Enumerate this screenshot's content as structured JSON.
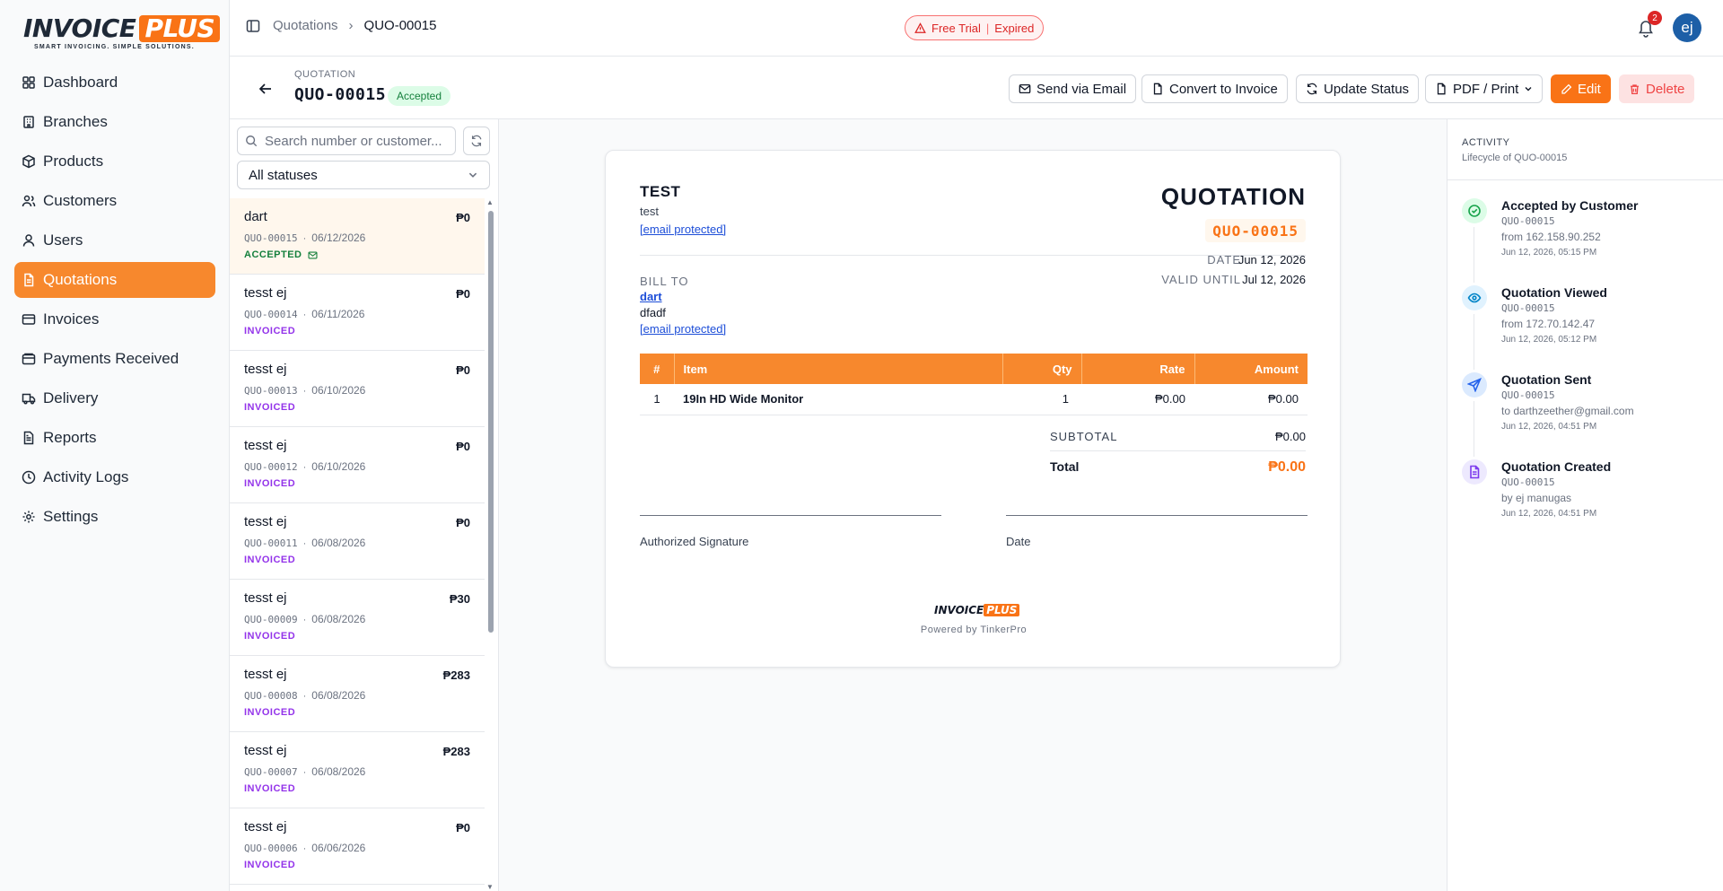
{
  "brand": {
    "name_part1": "INVOICE",
    "name_part2": "PLUS",
    "tagline": "SMART INVOICING. SIMPLE SOLUTIONS."
  },
  "sidebar": {
    "items": [
      {
        "label": "Dashboard",
        "icon": "dashboard-icon"
      },
      {
        "label": "Branches",
        "icon": "building-icon"
      },
      {
        "label": "Products",
        "icon": "package-icon"
      },
      {
        "label": "Customers",
        "icon": "users-icon"
      },
      {
        "label": "Users",
        "icon": "user-icon"
      },
      {
        "label": "Quotations",
        "icon": "file-text-icon",
        "active": true
      },
      {
        "label": "Invoices",
        "icon": "receipt-icon"
      },
      {
        "label": "Payments Received",
        "icon": "wallet-icon"
      },
      {
        "label": "Delivery",
        "icon": "truck-icon"
      },
      {
        "label": "Reports",
        "icon": "report-icon"
      },
      {
        "label": "Activity Logs",
        "icon": "clock-icon"
      },
      {
        "label": "Settings",
        "icon": "gear-icon"
      }
    ]
  },
  "topbar": {
    "breadcrumb": [
      "Quotations",
      "QUO-00015"
    ],
    "trial_label": "Free Trial",
    "trial_status": "Expired",
    "notification_count": "2",
    "avatar_initials": "ej"
  },
  "header": {
    "kicker": "QUOTATION",
    "number": "QUO-00015",
    "status": "Accepted",
    "actions": {
      "send_email": "Send via Email",
      "convert": "Convert to Invoice",
      "update_status": "Update Status",
      "pdf_print": "PDF / Print",
      "edit": "Edit",
      "delete": "Delete"
    }
  },
  "list": {
    "search_placeholder": "Search number or customer...",
    "status_filter": "All statuses",
    "items": [
      {
        "name": "dart",
        "number": "QUO-00015",
        "date": "06/12/2026",
        "amount": "₱0",
        "status": "ACCEPTED"
      },
      {
        "name": "tesst ej",
        "number": "QUO-00014",
        "date": "06/11/2026",
        "amount": "₱0",
        "status": "INVOICED"
      },
      {
        "name": "tesst ej",
        "number": "QUO-00013",
        "date": "06/10/2026",
        "amount": "₱0",
        "status": "INVOICED"
      },
      {
        "name": "tesst ej",
        "number": "QUO-00012",
        "date": "06/10/2026",
        "amount": "₱0",
        "status": "INVOICED"
      },
      {
        "name": "tesst ej",
        "number": "QUO-00011",
        "date": "06/08/2026",
        "amount": "₱0",
        "status": "INVOICED"
      },
      {
        "name": "tesst ej",
        "number": "QUO-00009",
        "date": "06/08/2026",
        "amount": "₱30",
        "status": "INVOICED"
      },
      {
        "name": "tesst ej",
        "number": "QUO-00008",
        "date": "06/08/2026",
        "amount": "₱283",
        "status": "INVOICED"
      },
      {
        "name": "tesst ej",
        "number": "QUO-00007",
        "date": "06/08/2026",
        "amount": "₱283",
        "status": "INVOICED"
      },
      {
        "name": "tesst ej",
        "number": "QUO-00006",
        "date": "06/06/2026",
        "amount": "₱0",
        "status": "INVOICED"
      }
    ]
  },
  "document": {
    "company": "TEST",
    "company_sub": "test",
    "company_email": "[email protected]",
    "title": "QUOTATION",
    "number": "QUO-00015",
    "bill_to_label": "BILL TO",
    "bill_to_name": "dart",
    "bill_to_address": "dfadf",
    "bill_to_email": "[email protected]",
    "date_label": "DATE",
    "date_value": "Jun 12, 2026",
    "valid_label": "VALID UNTIL",
    "valid_value": "Jul 12, 2026",
    "columns": [
      "#",
      "Item",
      "Qty",
      "Rate",
      "Amount"
    ],
    "lines": [
      {
        "no": "1",
        "item": "19In HD Wide Monitor",
        "qty": "1",
        "rate": "₱0.00",
        "amount": "₱0.00"
      }
    ],
    "subtotal_label": "SUBTOTAL",
    "subtotal_value": "₱0.00",
    "total_label": "Total",
    "total_value": "₱0.00",
    "signature_label": "Authorized Signature",
    "sig_date_label": "Date",
    "footer_logo_part1": "INVOICE",
    "footer_logo_part2": "PLUS",
    "powered_by": "Powered by TinkerPro"
  },
  "activity": {
    "title": "ACTIVITY",
    "subtitle": "Lifecycle of QUO-00015",
    "events": [
      {
        "title": "Accepted by Customer",
        "number": "QUO-00015",
        "detail": "from 162.158.90.252",
        "time": "Jun 12, 2026, 05:15 PM",
        "icon": "check-circle-icon",
        "color": "#16a34a",
        "bg": "#dcfce7"
      },
      {
        "title": "Quotation Viewed",
        "number": "QUO-00015",
        "detail": "from 172.70.142.47",
        "time": "Jun 12, 2026, 05:12 PM",
        "icon": "eye-icon",
        "color": "#0284c7",
        "bg": "#e0f2fe"
      },
      {
        "title": "Quotation Sent",
        "number": "QUO-00015",
        "detail": "to darthzeether@gmail.com",
        "time": "Jun 12, 2026, 04:51 PM",
        "icon": "send-icon",
        "color": "#2563eb",
        "bg": "#dbeafe"
      },
      {
        "title": "Quotation Created",
        "number": "QUO-00015",
        "detail": "by ej manugas",
        "time": "Jun 12, 2026, 04:51 PM",
        "icon": "file-icon",
        "color": "#7c3aed",
        "bg": "#ede9fe"
      }
    ]
  }
}
